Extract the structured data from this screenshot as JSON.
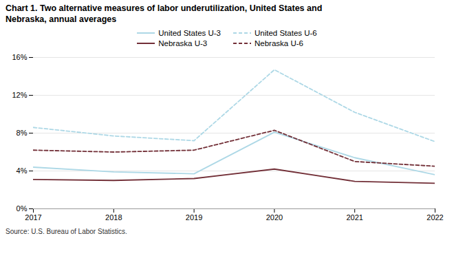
{
  "chart_data": {
    "type": "line",
    "title": "Chart 1. Two alternative measures of labor underutilization, United States and\nNebraska, annual averages",
    "source": "Source: U.S. Bureau of Labor Statistics.",
    "x": [
      2017,
      2018,
      2019,
      2020,
      2021,
      2022
    ],
    "xlim": [
      2017,
      2022
    ],
    "xticks": [
      2017,
      2018,
      2019,
      2020,
      2021,
      2022
    ],
    "ylim": [
      0,
      16
    ],
    "yticks": [
      {
        "value": 0,
        "label": "0%"
      },
      {
        "value": 4,
        "label": "4%"
      },
      {
        "value": 8,
        "label": "8%"
      },
      {
        "value": 12,
        "label": "12%"
      },
      {
        "value": 16,
        "label": "16%"
      }
    ],
    "grid": true,
    "legend": "top",
    "series": [
      {
        "name": "United States U-3",
        "color": "#ADD8E6",
        "line_style": "solid",
        "values": [
          4.4,
          3.9,
          3.7,
          8.1,
          5.4,
          3.6
        ]
      },
      {
        "name": "United States U-6",
        "color": "#ADD8E6",
        "line_style": "dashed",
        "values": [
          8.6,
          7.7,
          7.2,
          14.7,
          10.2,
          7.1
        ]
      },
      {
        "name": "Nebraska U-3",
        "color": "#722F37",
        "line_style": "solid",
        "values": [
          3.1,
          3.0,
          3.2,
          4.2,
          2.9,
          2.7
        ]
      },
      {
        "name": "Nebraska U-6",
        "color": "#722F37",
        "line_style": "dashed",
        "values": [
          6.2,
          6.0,
          6.2,
          8.3,
          5.0,
          4.5
        ]
      }
    ]
  }
}
